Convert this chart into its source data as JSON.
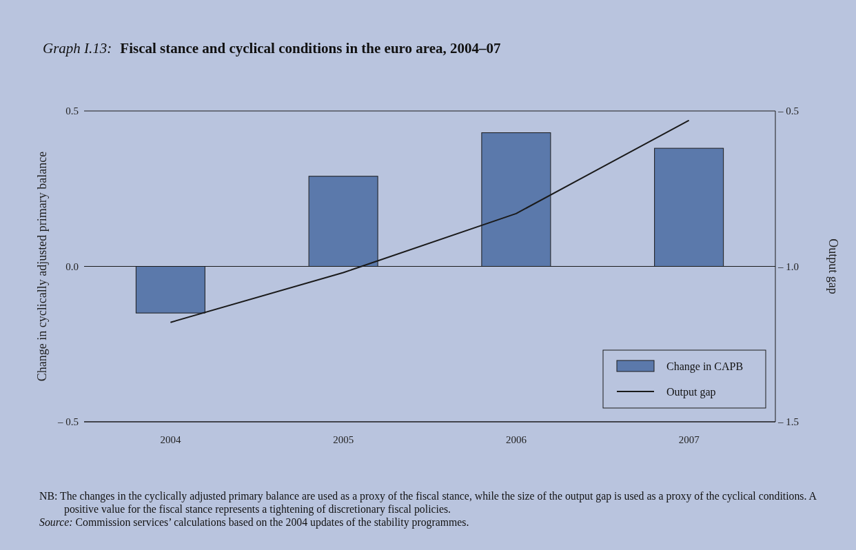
{
  "chart_data": {
    "type": "bar",
    "title": "Graph I.13: Fiscal stance and cyclical conditions in the euro area, 2004–07",
    "ylabel": "Change in cyclically adjusted primary balance",
    "y2label": "Output gap",
    "categories": [
      "2004",
      "2005",
      "2006",
      "2007"
    ],
    "series": [
      {
        "name": "Change in CAPB",
        "color": "#5b79ab",
        "values": [
          -0.15,
          0.29,
          0.43,
          0.38
        ]
      },
      {
        "name": "Output gap",
        "type": "line",
        "axis": "y2",
        "color": "#1a1a1a",
        "values": [
          -1.18,
          -1.02,
          -0.83,
          -0.53
        ]
      }
    ],
    "ylim": [
      -0.5,
      0.5
    ],
    "yticks": [
      {
        "value": -0.5,
        "label": "– 0.5"
      },
      {
        "value": 0,
        "label": "0.0"
      },
      {
        "value": 0.5,
        "label": "0.5"
      }
    ],
    "y2lim": [
      -1.5,
      -0.5
    ],
    "y2ticks": [
      {
        "value": -1.5,
        "label": "– 1.5"
      },
      {
        "value": -1,
        "label": "– 1.0"
      },
      {
        "value": -0.5,
        "label": "– 0.5"
      }
    ],
    "legend": "bottom right",
    "annotations": [
      "NB: The changes in the cyclically adjusted primary balance are used as a proxy of the fiscal stance, while the size of the output gap is used as a proxy of the cyclical conditions. A positive value for the fiscal stance represents a tightening of discretionary fiscal policies.",
      "Source: Commission services’ calculations based on the 2004 updates of the stability programmes."
    ]
  }
}
